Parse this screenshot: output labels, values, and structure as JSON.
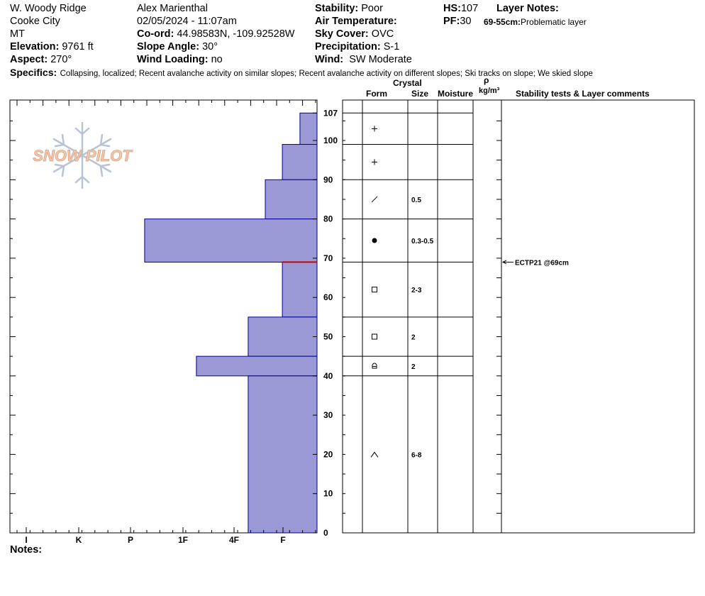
{
  "header": {
    "location": "W. Woody Ridge",
    "city": "Cooke City",
    "state": "MT",
    "elevation_label": "Elevation:",
    "elevation": "9761 ft",
    "aspect_label": "Aspect:",
    "aspect": "270°",
    "observer": "Alex Marienthal",
    "datetime": "02/05/2024 - 11:07am",
    "coord_label": "Co-ord:",
    "coord": "44.98583N, -109.92528W",
    "slope_label": "Slope Angle:",
    "slope": "30°",
    "wind_loading_label": "Wind Loading:",
    "wind_loading": "no",
    "stability_label": "Stability:",
    "stability": "Poor",
    "air_temp_label": "Air Temperature:",
    "sky_label": "Sky Cover:",
    "sky": "OVC",
    "precip_label": "Precipitation:",
    "precip": "S-1",
    "wind_label": "Wind:",
    "wind": "SW Moderate",
    "hs_label": "HS:",
    "hs": "107",
    "pf_label": "PF:",
    "pf": "30",
    "layer_notes_label": "Layer Notes:",
    "layer_note_range": "69-55cm:",
    "layer_note_text": "Problematic layer",
    "specifics_label": "Specifics:",
    "specifics": "Collapsing, localized; Recent avalanche activity on similar slopes; Recent avalanche activity on different slopes; Ski tracks on slope; We skied slope"
  },
  "columns": {
    "crystal": "Crystal",
    "form": "Form",
    "size": "Size",
    "moisture": "Moisture",
    "rho": "ρ",
    "density_unit": "kg/m³",
    "tests": "Stability tests & Layer comments"
  },
  "logo_text": "SNOW PILOT",
  "notes_label": "Notes:",
  "chart_data": {
    "type": "bar",
    "orientation": "horizontal",
    "y_label": "",
    "ylim": [
      0,
      110
    ],
    "yticks": [
      0,
      10,
      20,
      30,
      40,
      50,
      60,
      70,
      80,
      90,
      100,
      107
    ],
    "hardness_ticks": [
      "I",
      "K",
      "P",
      "1F",
      "4F",
      "F"
    ],
    "hardness_scale_note": "hardness increases to the left; F is rightmost labeled tick",
    "layers": [
      {
        "top": 107,
        "bottom": 99,
        "hardness": 0.33
      },
      {
        "top": 99,
        "bottom": 90,
        "hardness": 0.67
      },
      {
        "top": 90,
        "bottom": 80,
        "hardness": 1.0
      },
      {
        "top": 80,
        "bottom": 69,
        "hardness": 3.33
      },
      {
        "top": 69,
        "bottom": 55,
        "hardness": 0.67
      },
      {
        "top": 55,
        "bottom": 45,
        "hardness": 1.33
      },
      {
        "top": 45,
        "bottom": 40,
        "hardness": 2.33
      },
      {
        "top": 40,
        "bottom": 0,
        "hardness": 1.33
      }
    ],
    "problem_layer_depth": 69,
    "bar_color": "#9a99d6",
    "bar_edge_color": "#00008b",
    "problem_line_color": "#cc0000"
  },
  "layer_table": {
    "boundaries": [
      107,
      99,
      90,
      80,
      69,
      55,
      45,
      40,
      0
    ],
    "rows": [
      {
        "form_icon": "plus-icon",
        "size": ""
      },
      {
        "form_icon": "plus-icon",
        "size": ""
      },
      {
        "form_icon": "slash-icon",
        "size": "0.5"
      },
      {
        "form_icon": "dot-icon",
        "size": "0.3-0.5"
      },
      {
        "form_icon": "square-icon",
        "size": "2-3"
      },
      {
        "form_icon": "square-icon",
        "size": "2"
      },
      {
        "form_icon": "faceted-rounded-icon",
        "size": "2"
      },
      {
        "form_icon": "caret-icon",
        "size": "6-8"
      }
    ]
  },
  "stability_tests": [
    {
      "depth": 69,
      "label": "ECTP21 @69cm"
    }
  ]
}
